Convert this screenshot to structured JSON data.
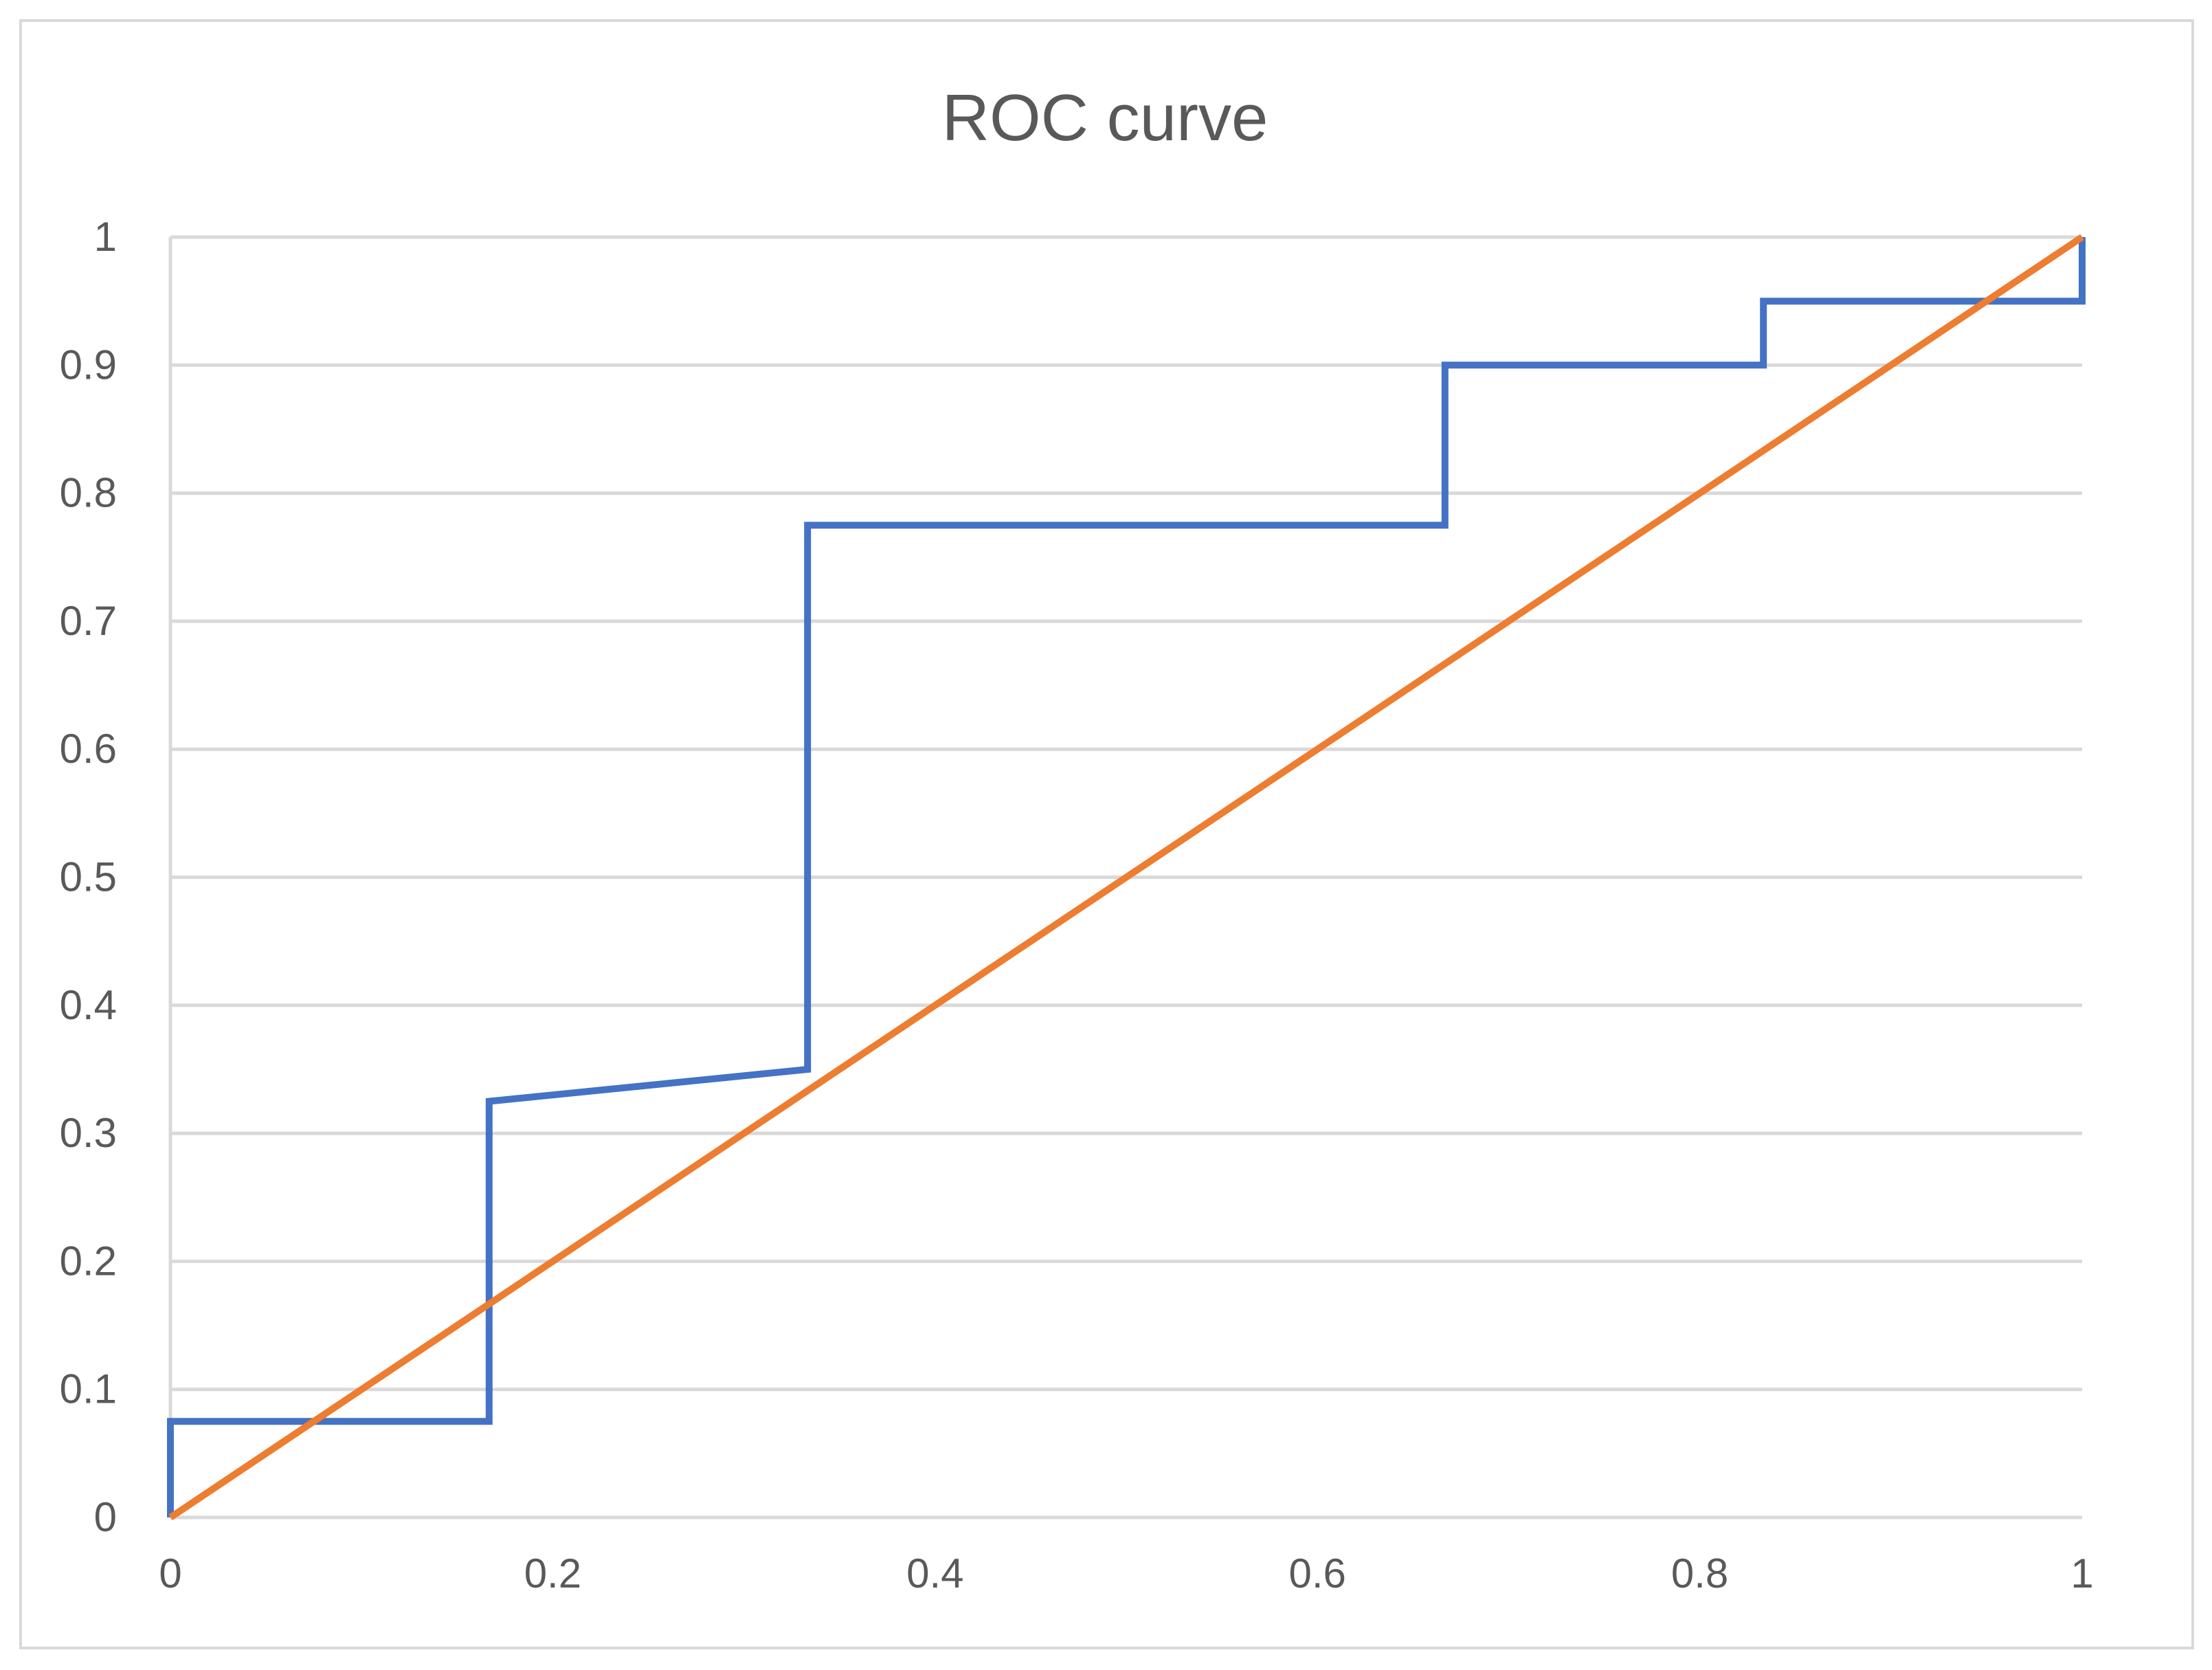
{
  "chart_data": {
    "type": "line",
    "title": "ROC curve",
    "xlabel": "",
    "ylabel": "",
    "xlim": [
      0,
      1
    ],
    "ylim": [
      0,
      1
    ],
    "x_ticks": [
      "0",
      "0.2",
      "0.4",
      "0.6",
      "0.8",
      "1"
    ],
    "y_ticks": [
      "0",
      "0.1",
      "0.2",
      "0.3",
      "0.4",
      "0.5",
      "0.6",
      "0.7",
      "0.8",
      "0.9",
      "1"
    ],
    "grid": "horizontal",
    "legend": "none",
    "series": [
      {
        "color": "#4472c4",
        "points": [
          [
            0,
            0
          ],
          [
            0,
            0.075
          ],
          [
            0.1667,
            0.075
          ],
          [
            0.1667,
            0.325
          ],
          [
            0.3333,
            0.35
          ],
          [
            0.3333,
            0.775
          ],
          [
            0.6667,
            0.775
          ],
          [
            0.6667,
            0.9
          ],
          [
            0.8333,
            0.9
          ],
          [
            0.8333,
            0.95
          ],
          [
            1,
            0.95
          ],
          [
            1,
            1
          ]
        ]
      },
      {
        "color": "#ed7d31",
        "points": [
          [
            0,
            0
          ],
          [
            1,
            1
          ]
        ]
      }
    ]
  }
}
